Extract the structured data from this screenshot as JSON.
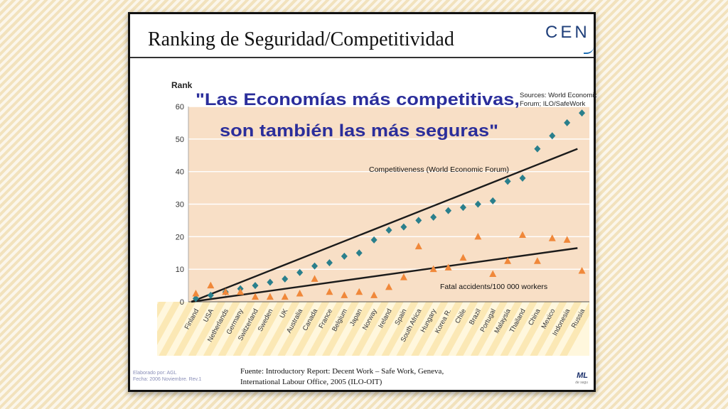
{
  "slide": {
    "title": "Ranking de Seguridad/Competitividad",
    "logo_text": "CENI",
    "footer_source": [
      "Fuente: Introductory Report: Decent Work – Safe Work, Geneva,",
      "International Labour Office, 2005 (ILO-OIT)"
    ],
    "footer_credit": [
      "Elaborado por: AGL",
      "Fecha: 2006 Noviembre. Rev.1"
    ],
    "footer_logo": "ML",
    "footer_logo_sub": "de segu"
  },
  "chart_data": {
    "type": "scatter",
    "ylabel": "Rank",
    "ylim": [
      0,
      60
    ],
    "yticks": [
      0,
      10,
      20,
      30,
      40,
      50,
      60
    ],
    "grid": true,
    "categories": [
      "Finland",
      "USA",
      "Netherlands",
      "Germany",
      "Switzerland",
      "Sweden",
      "UK",
      "Australia",
      "Canada",
      "France",
      "Belgium",
      "Japan",
      "Norway",
      "Ireland",
      "Spain",
      "South Africa",
      "Hungary",
      "Korea R.",
      "Chile",
      "Brazil",
      "Portugal",
      "Malaysia",
      "Thailand",
      "China",
      "Mexico",
      "Indonesia",
      "Russia"
    ],
    "series": [
      {
        "name": "Competitiveness (World Economic Forum)",
        "marker": "diamond",
        "color": "#2a7f8c",
        "values": [
          1,
          2,
          3,
          4,
          5,
          6,
          7,
          9,
          11,
          12,
          14,
          15,
          19,
          22,
          23,
          25,
          26,
          28,
          29,
          30,
          31,
          37,
          38,
          47,
          51,
          55,
          58
        ],
        "trend": [
          0,
          47
        ]
      },
      {
        "name": "Fatal accidents/100 000 workers",
        "marker": "triangle",
        "color": "#f0883a",
        "values": [
          2.5,
          5,
          3,
          3,
          1.5,
          1.5,
          1.5,
          2.5,
          7,
          3,
          2,
          3,
          2,
          4.5,
          7.5,
          17,
          10,
          10.5,
          13.5,
          20,
          8.5,
          12.5,
          20.5,
          12.5,
          19.5,
          19,
          9.5
        ],
        "trend": [
          0,
          16.5
        ]
      }
    ],
    "annotation": {
      "quote_lines": [
        "\"Las Economías más competitivas,",
        "son también las más seguras\""
      ],
      "source_lines": [
        "Sources: World Economic",
        "Forum; ILO/SafeWork"
      ]
    },
    "colors": {
      "plot_bg": "#f8dfc6",
      "label_band_a": "#fbe8b5",
      "label_band_b": "#fff7dd",
      "quote": "#2b2e9b"
    }
  }
}
